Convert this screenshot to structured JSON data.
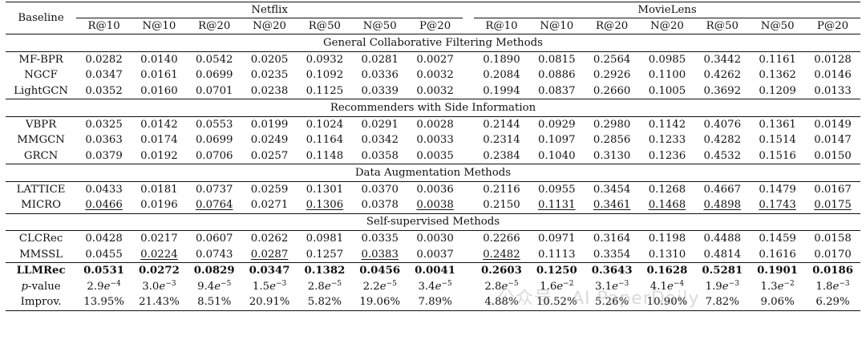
{
  "table": {
    "baseline_header": "Baseline",
    "datasets": [
      "Netflix",
      "MovieLens"
    ],
    "metrics_netflix": [
      "R@10",
      "N@10",
      "R@20",
      "N@20",
      "R@50",
      "N@50",
      "P@20"
    ],
    "metrics_movielens": [
      "R@10",
      "N@10",
      "R@20",
      "N@20",
      "R@50",
      "N@50",
      "P@20"
    ],
    "sections": [
      {
        "title": "General Collaborative Filtering Methods",
        "rows": [
          {
            "name": "MF-BPR",
            "cells": [
              "0.0282",
              "0.0140",
              "0.0542",
              "0.0205",
              "0.0932",
              "0.0281",
              "0.0027",
              "0.1890",
              "0.0815",
              "0.2564",
              "0.0985",
              "0.3442",
              "0.1161",
              "0.0128"
            ]
          },
          {
            "name": "NGCF",
            "cells": [
              "0.0347",
              "0.0161",
              "0.0699",
              "0.0235",
              "0.1092",
              "0.0336",
              "0.0032",
              "0.2084",
              "0.0886",
              "0.2926",
              "0.1100",
              "0.4262",
              "0.1362",
              "0.0146"
            ]
          },
          {
            "name": "LightGCN",
            "cells": [
              "0.0352",
              "0.0160",
              "0.0701",
              "0.0238",
              "0.1125",
              "0.0339",
              "0.0032",
              "0.1994",
              "0.0837",
              "0.2660",
              "0.1005",
              "0.3692",
              "0.1209",
              "0.0133"
            ]
          }
        ]
      },
      {
        "title": "Recommenders with Side Information",
        "rows": [
          {
            "name": "VBPR",
            "cells": [
              "0.0325",
              "0.0142",
              "0.0553",
              "0.0199",
              "0.1024",
              "0.0291",
              "0.0028",
              "0.2144",
              "0.0929",
              "0.2980",
              "0.1142",
              "0.4076",
              "0.1361",
              "0.0149"
            ]
          },
          {
            "name": "MMGCN",
            "cells": [
              "0.0363",
              "0.0174",
              "0.0699",
              "0.0249",
              "0.1164",
              "0.0342",
              "0.0033",
              "0.2314",
              "0.1097",
              "0.2856",
              "0.1233",
              "0.4282",
              "0.1514",
              "0.0147"
            ]
          },
          {
            "name": "GRCN",
            "cells": [
              "0.0379",
              "0.0192",
              "0.0706",
              "0.0257",
              "0.1148",
              "0.0358",
              "0.0035",
              "0.2384",
              "0.1040",
              "0.3130",
              "0.1236",
              "0.4532",
              "0.1516",
              "0.0150"
            ]
          }
        ]
      },
      {
        "title": "Data Augmentation Methods",
        "rows": [
          {
            "name": "LATTICE",
            "cells": [
              "0.0433",
              "0.0181",
              "0.0737",
              "0.0259",
              "0.1301",
              "0.0370",
              "0.0036",
              "0.2116",
              "0.0955",
              "0.3454",
              "0.1268",
              "0.4667",
              "0.1479",
              "0.0167"
            ]
          },
          {
            "name": "MICRO",
            "cells": [
              "0.0466",
              "0.0196",
              "0.0764",
              "0.0271",
              "0.1306",
              "0.0378",
              "0.0038",
              "0.2150",
              "0.1131",
              "0.3461",
              "0.1468",
              "0.4898",
              "0.1743",
              "0.0175"
            ],
            "underline": [
              0,
              2,
              4,
              6,
              8,
              9,
              10,
              11,
              12,
              13
            ]
          }
        ]
      },
      {
        "title": "Self-supervised Methods",
        "rows": [
          {
            "name": "CLCRec",
            "cells": [
              "0.0428",
              "0.0217",
              "0.0607",
              "0.0262",
              "0.0981",
              "0.0335",
              "0.0030",
              "0.2266",
              "0.0971",
              "0.3164",
              "0.1198",
              "0.4488",
              "0.1459",
              "0.0158"
            ]
          },
          {
            "name": "MMSSL",
            "cells": [
              "0.0455",
              "0.0224",
              "0.0743",
              "0.0287",
              "0.1257",
              "0.0383",
              "0.0037",
              "0.2482",
              "0.1113",
              "0.3354",
              "0.1310",
              "0.4814",
              "0.1616",
              "0.0170"
            ],
            "underline": [
              1,
              3,
              5,
              7
            ]
          }
        ]
      }
    ],
    "final_rows": {
      "llmrec": {
        "name": "LLMRec",
        "cells": [
          "0.0531",
          "0.0272",
          "0.0829",
          "0.0347",
          "0.1382",
          "0.0456",
          "0.0041",
          "0.2603",
          "0.1250",
          "0.3643",
          "0.1628",
          "0.5281",
          "0.1901",
          "0.0186"
        ]
      },
      "pvalue": {
        "name_italic": "p",
        "name_rest": "-value",
        "cells": [
          {
            "m": "2.9",
            "e": "−4"
          },
          {
            "m": "3.0",
            "e": "−3"
          },
          {
            "m": "9.4",
            "e": "−5"
          },
          {
            "m": "1.5",
            "e": "−3"
          },
          {
            "m": "2.8",
            "e": "−5"
          },
          {
            "m": "2.2",
            "e": "−5"
          },
          {
            "m": "3.4",
            "e": "−5"
          },
          {
            "m": "2.8",
            "e": "−5"
          },
          {
            "m": "1.6",
            "e": "−2"
          },
          {
            "m": "3.1",
            "e": "−3"
          },
          {
            "m": "4.1",
            "e": "−4"
          },
          {
            "m": "1.9",
            "e": "−3"
          },
          {
            "m": "1.3",
            "e": "−2"
          },
          {
            "m": "1.8",
            "e": "−3"
          }
        ]
      },
      "improv": {
        "name": "Improv.",
        "cells": [
          "13.95%",
          "21.43%",
          "8.51%",
          "20.91%",
          "5.82%",
          "19.06%",
          "7.89%",
          "4.88%",
          "10.52%",
          "5.26%",
          "10.90%",
          "7.82%",
          "9.06%",
          "6.29%"
        ]
      }
    },
    "watermark": "公众号 · AI PaperDaily"
  }
}
